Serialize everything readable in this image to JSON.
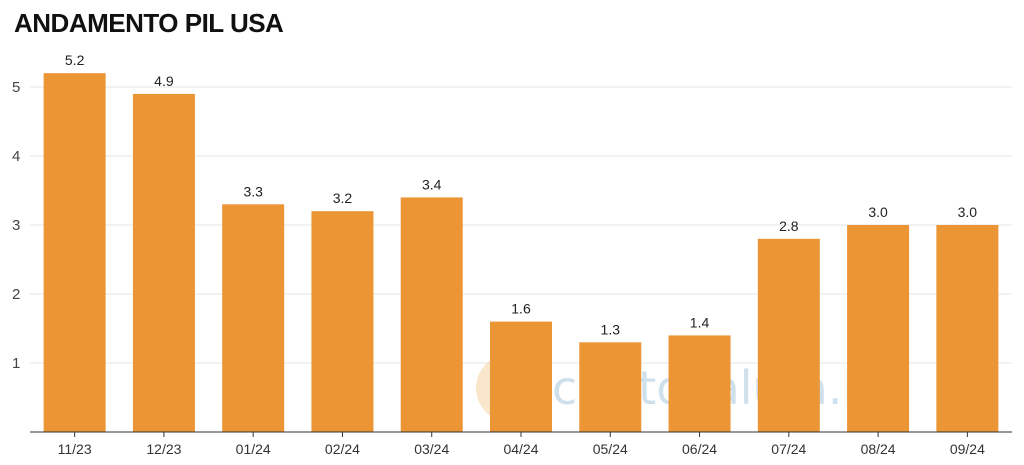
{
  "chart_data": {
    "type": "bar",
    "title": "ANDAMENTO PIL USA",
    "categories": [
      "11/23",
      "12/23",
      "01/24",
      "02/24",
      "03/24",
      "04/24",
      "05/24",
      "06/24",
      "07/24",
      "08/24",
      "09/24"
    ],
    "values": [
      5.2,
      4.9,
      3.3,
      3.2,
      3.4,
      1.6,
      1.3,
      1.4,
      2.8,
      3.0,
      3.0
    ],
    "value_labels": [
      "5.2",
      "4.9",
      "3.3",
      "3.2",
      "3.4",
      "1.6",
      "1.3",
      "1.4",
      "2.8",
      "3.0",
      "3.0"
    ],
    "y_ticks": [
      1,
      2,
      3,
      4,
      5
    ],
    "ylim": [
      0,
      5.5
    ],
    "grid": true,
    "legend": "none",
    "bar_color": "#eb9535"
  },
  "watermark": {
    "text": "criptovaluta.it",
    "mark": "®"
  }
}
